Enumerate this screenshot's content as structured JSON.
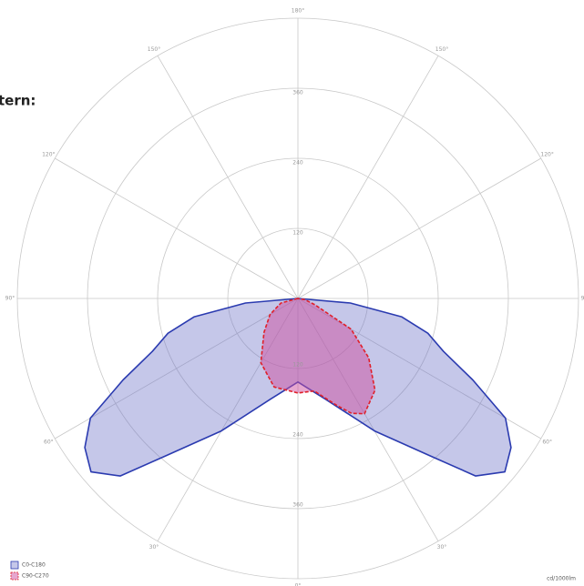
{
  "chart_data": {
    "type": "polar",
    "title": "tern:",
    "unit_label": "cd/1000lm",
    "rlim": [
      0,
      480
    ],
    "rticks": [
      120,
      240,
      360,
      480
    ],
    "angle_ticks": [
      {
        "value": 0,
        "label": "0°"
      },
      {
        "value": 30,
        "label": "30°"
      },
      {
        "value": 60,
        "label": "60°"
      },
      {
        "value": 90,
        "label": "90°"
      },
      {
        "value": 120,
        "label": "120°"
      },
      {
        "value": 150,
        "label": "150°"
      },
      {
        "value": 180,
        "label": "180°"
      }
    ],
    "grid": true,
    "series": [
      {
        "name": "C0-C180",
        "color": "#2b3bb0",
        "fill": "rgba(110,115,200,0.4)",
        "dashed": false,
        "angles": [
          -90,
          -85,
          -80,
          -75,
          -70,
          -65,
          -60,
          -55,
          -50,
          -45,
          -40,
          -30,
          -15,
          0,
          15,
          30,
          40,
          45,
          50,
          55,
          60,
          65,
          70,
          75,
          80,
          85,
          90
        ],
        "values": [
          0,
          90,
          180,
          230,
          265,
          330,
          410,
          445,
          462,
          430,
          352,
          262,
          178,
          143,
          178,
          262,
          352,
          430,
          462,
          445,
          410,
          330,
          265,
          230,
          180,
          90,
          0
        ]
      },
      {
        "name": "C90-C270",
        "color": "#e0202a",
        "fill": "rgba(205,80,160,0.5)",
        "dashed": true,
        "angles": [
          -90,
          -75,
          -60,
          -45,
          -30,
          -15,
          0,
          10,
          20,
          25,
          30,
          40,
          50,
          60,
          70,
          80,
          90
        ],
        "values": [
          0,
          30,
          55,
          82,
          127,
          157,
          162,
          161,
          195,
          217,
          228,
          205,
          158,
          105,
          30,
          12,
          0
        ]
      }
    ]
  }
}
